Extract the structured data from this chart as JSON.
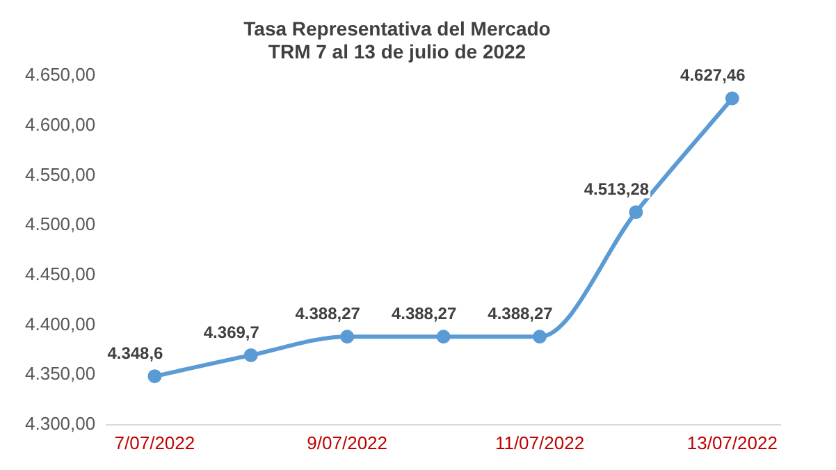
{
  "chart_data": {
    "type": "line",
    "title": "Tasa Representativa del Mercado\nTRM 7 al 13 de julio de 2022",
    "categories": [
      "7/07/2022",
      null,
      "9/07/2022",
      null,
      "11/07/2022",
      null,
      "13/07/2022"
    ],
    "series": [
      {
        "color": "#5b9bd5",
        "values": [
          4348.6,
          4369.7,
          4388.27,
          4388.27,
          4388.27,
          4513.28,
          4627.46
        ],
        "value_labels": [
          "4.348,6",
          "4.369,7",
          "4.388,27",
          "4.388,27",
          "4.388,27",
          "4.513,28",
          "4.627,46"
        ]
      }
    ],
    "ylim": [
      4300,
      4650
    ],
    "yticks": [
      {
        "value": 4300,
        "label": "4.300,00"
      },
      {
        "value": 4350,
        "label": "4.350,00"
      },
      {
        "value": 4400,
        "label": "4.400,00"
      },
      {
        "value": 4450,
        "label": "4.450,00"
      },
      {
        "value": 4500,
        "label": "4.500,00"
      },
      {
        "value": 4550,
        "label": "4.550,00"
      },
      {
        "value": 4600,
        "label": "4.600,00"
      },
      {
        "value": 4650,
        "label": "4.650,00"
      }
    ],
    "grid": false,
    "legend": false,
    "marker": "circle",
    "line_style": "solid"
  }
}
